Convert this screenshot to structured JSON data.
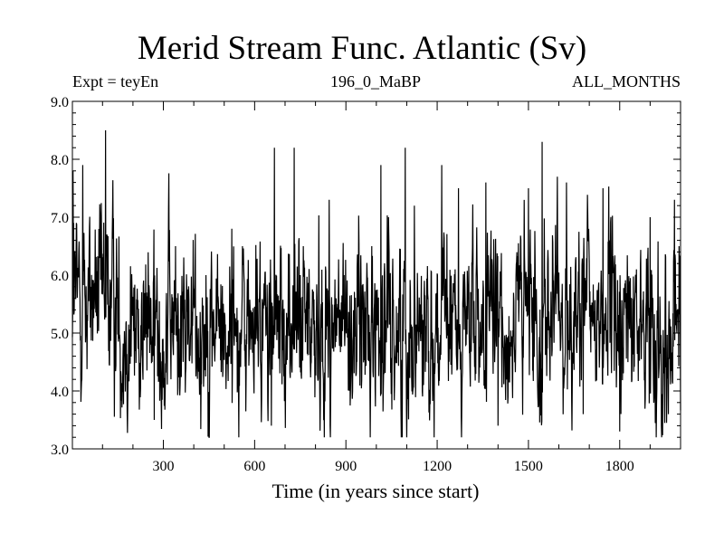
{
  "chart_data": {
    "type": "line",
    "title": "Merid Stream Func. Atlantic (Sv)",
    "subtitle_left": "Expt = teyEn",
    "subtitle_center": "196_0_MaBP",
    "subtitle_right": "ALL_MONTHS",
    "xlabel": "Time (in years since start)",
    "ylabel": "",
    "xlim": [
      1,
      2000
    ],
    "ylim": [
      3.0,
      9.0
    ],
    "xticks": [
      300,
      600,
      900,
      1200,
      1500,
      1800
    ],
    "yticks": [
      "3.0",
      "4.0",
      "5.0",
      "6.0",
      "7.0",
      "8.0",
      "9.0"
    ],
    "grid": false,
    "series": [
      {
        "x_start": 1,
        "x_step": 1,
        "mean": 5.1,
        "min": 3.2,
        "max": 8.5,
        "peaks": [
          [
            3,
            7.8
          ],
          [
            5,
            6.9
          ],
          [
            35,
            7.9
          ],
          [
            110,
            8.5
          ],
          [
            115,
            6.7
          ],
          [
            245,
            5.7
          ],
          [
            270,
            3.5
          ],
          [
            340,
            6.5
          ],
          [
            440,
            6.0
          ],
          [
            525,
            6.8
          ],
          [
            560,
            6.5
          ],
          [
            655,
            3.4
          ],
          [
            665,
            8.2
          ],
          [
            730,
            8.2
          ],
          [
            760,
            6.5
          ],
          [
            845,
            7.3
          ],
          [
            985,
            6.5
          ],
          [
            1015,
            7.9
          ],
          [
            1040,
            7.0
          ],
          [
            1085,
            3.2
          ],
          [
            1095,
            8.2
          ],
          [
            1125,
            7.2
          ],
          [
            1215,
            7.9
          ],
          [
            1270,
            7.5
          ],
          [
            1360,
            7.6
          ],
          [
            1400,
            3.4
          ],
          [
            1500,
            7.5
          ],
          [
            1545,
            8.3
          ],
          [
            1595,
            7.7
          ],
          [
            1625,
            7.6
          ],
          [
            1680,
            3.6
          ],
          [
            1745,
            7.5
          ],
          [
            1800,
            3.3
          ],
          [
            1900,
            7.0
          ],
          [
            1960,
            3.6
          ],
          [
            1980,
            7.3
          ],
          [
            1995,
            6.5
          ]
        ]
      }
    ]
  }
}
